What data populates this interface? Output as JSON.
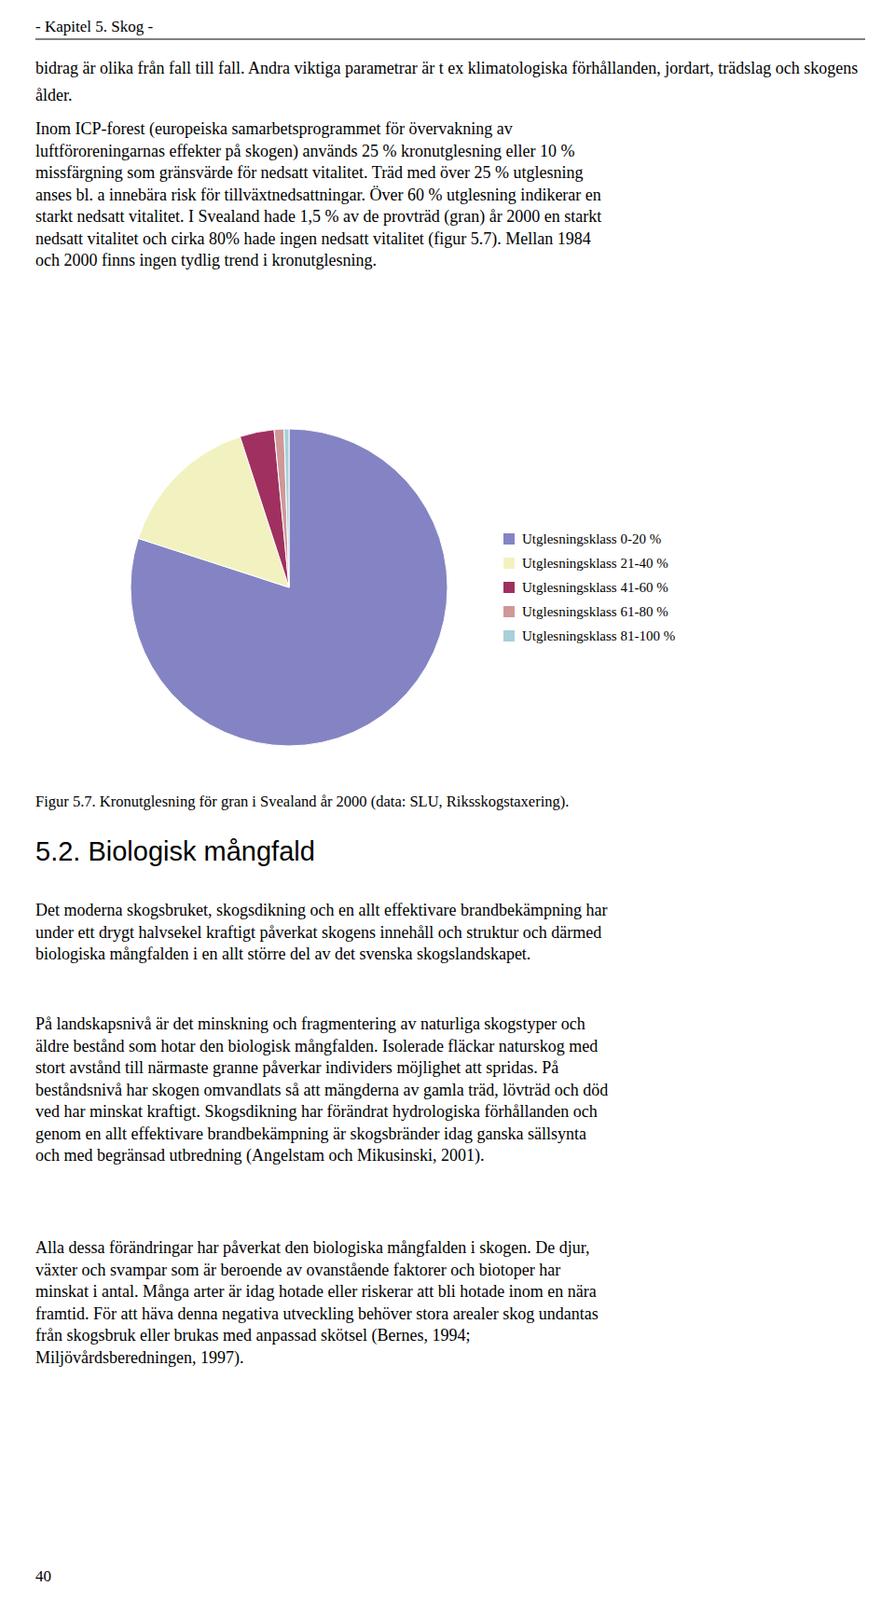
{
  "page": {
    "header": "- Kapitel 5. Skog -",
    "paragraphs_before": [
      [
        "bidrag är olika från fall till fall. Andra viktiga parametrar är t ex klimatologiska förhållanden, jordart, trädslag och skogens ålder."
      ],
      [
        "Inom ICP-forest (europeiska samarbetsprogrammet för övervakning av",
        "luftföroreningarnas effekter på skogen) används 25 % kronutglesning eller 10 %",
        "missfärgning som gränsvärde för nedsatt vitalitet. Träd med över 25 % utglesning",
        "anses bl. a innebära risk för tillväxtnedsattningar. Över 60 % utglesning indikerar en",
        "starkt nedsatt vitalitet. I Svealand hade 1,5 % av de provträd (gran) år 2000 en starkt",
        "nedsatt vitalitet och cirka 80% hade ingen nedsatt vitalitet (figur 5.7). Mellan 1984",
        "och 2000 finns ingen tydlig trend i kronutglesning."
      ]
    ],
    "section_title": "5.2. Biologisk mångfald",
    "paragraphs_after": [
      [
        "Det moderna skogsbruket, skogsdikning och en allt effektivare brandbekämpning har",
        "under ett drygt halvsekel kraftigt påverkat skogens innehåll och struktur och därmed",
        "biologiska mångfalden i en allt större del av det svenska skogslandskapet."
      ],
      [
        "På landskapsnivå är det minskning och fragmentering av naturliga skogstyper och",
        "äldre bestånd som hotar den biologisk mångfalden. Isolerade fläckar naturskog med",
        "stort avstånd till närmaste granne påverkar individers möjlighet att spridas. På",
        "beståndsnivå har skogen omvandlats så att mängderna av gamla träd, lövträd och död",
        "ved har minskat kraftigt. Skogsdikning har förändrat hydrologiska förhållanden och",
        "genom en allt effektivare brandbekämpning är skogsbränder idag ganska sällsynta",
        "och med begränsad utbredning (Angelstam och Mikusinski, 2001)."
      ],
      [
        "Alla dessa förändringar har påverkat den biologiska mångfalden i skogen. De djur,",
        "växter och svampar som är beroende av ovanstående faktorer och biotoper har",
        "minskat i antal. Många arter är idag hotade eller riskerar att bli hotade inom en nära",
        "framtid. För att häva denna negativa utveckling behöver stora arealer skog undantas",
        "från skogsbruk eller brukas med anpassad skötsel (Bernes, 1994;",
        "Miljövårdsberedningen, 1997)."
      ]
    ],
    "footer": "40"
  },
  "chart_data": {
    "type": "pie",
    "title": "Figur 5.7. Kronutglesning för gran i Svealand år 2000 (data: SLU, Riksskogstaxering).",
    "categories": [
      "Utglesningsklass 0-20 %",
      "Utglesningsklass 21-40 %",
      "Utglesningsklass 41-60 %",
      "Utglesningsklass 61-80 %",
      "Utglesningsklass 81-100 %"
    ],
    "values": [
      80.0,
      15.0,
      3.5,
      1.0,
      0.5
    ],
    "colors": [
      "#8484c4",
      "#f2f2c0",
      "#a03060",
      "#d09898",
      "#a8d0d8"
    ],
    "legend": "right"
  }
}
